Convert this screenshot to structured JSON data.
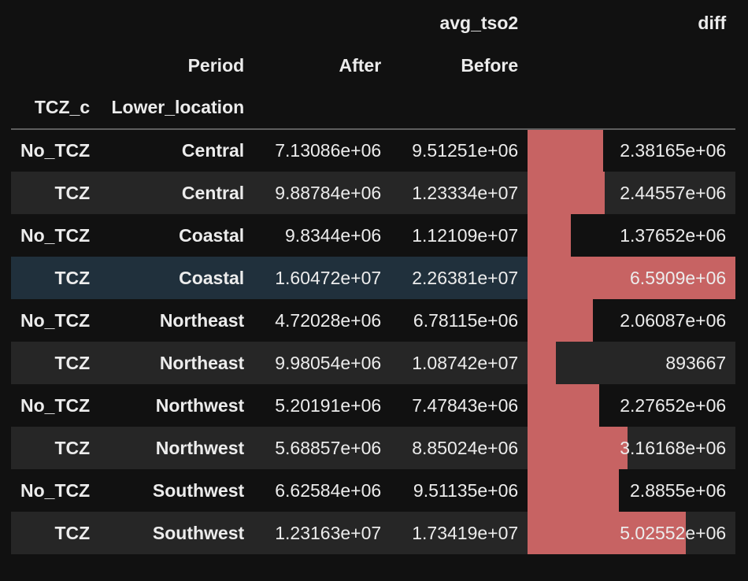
{
  "columns": {
    "group_top": "avg_tso2",
    "diff_top": "diff",
    "period_label": "Period",
    "after_label": "After",
    "before_label": "Before",
    "index_name_1": "TCZ_c",
    "index_name_2": "Lower_location"
  },
  "style": {
    "bar_color": "#c76363",
    "background": "#111111",
    "alt_row": "#262626",
    "hover_row": "#20303c",
    "text": "#ececec"
  },
  "hover_row_index": 3,
  "diff_bar_max": 6590900,
  "rows": [
    {
      "tcz": "No_TCZ",
      "location": "Central",
      "after": "7.13086e+06",
      "before": "9.51251e+06",
      "diff": "2.38165e+06",
      "diff_value": 2381650
    },
    {
      "tcz": "TCZ",
      "location": "Central",
      "after": "9.88784e+06",
      "before": "1.23334e+07",
      "diff": "2.44557e+06",
      "diff_value": 2445570
    },
    {
      "tcz": "No_TCZ",
      "location": "Coastal",
      "after": "9.8344e+06",
      "before": "1.12109e+07",
      "diff": "1.37652e+06",
      "diff_value": 1376520
    },
    {
      "tcz": "TCZ",
      "location": "Coastal",
      "after": "1.60472e+07",
      "before": "2.26381e+07",
      "diff": "6.5909e+06",
      "diff_value": 6590900
    },
    {
      "tcz": "No_TCZ",
      "location": "Northeast",
      "after": "4.72028e+06",
      "before": "6.78115e+06",
      "diff": "2.06087e+06",
      "diff_value": 2060870
    },
    {
      "tcz": "TCZ",
      "location": "Northeast",
      "after": "9.98054e+06",
      "before": "1.08742e+07",
      "diff": "893667",
      "diff_value": 893667
    },
    {
      "tcz": "No_TCZ",
      "location": "Northwest",
      "after": "5.20191e+06",
      "before": "7.47843e+06",
      "diff": "2.27652e+06",
      "diff_value": 2276520
    },
    {
      "tcz": "TCZ",
      "location": "Northwest",
      "after": "5.68857e+06",
      "before": "8.85024e+06",
      "diff": "3.16168e+06",
      "diff_value": 3161680
    },
    {
      "tcz": "No_TCZ",
      "location": "Southwest",
      "after": "6.62584e+06",
      "before": "9.51135e+06",
      "diff": "2.8855e+06",
      "diff_value": 2885500
    },
    {
      "tcz": "TCZ",
      "location": "Southwest",
      "after": "1.23163e+07",
      "before": "1.73419e+07",
      "diff": "5.02552e+06",
      "diff_value": 5025520
    }
  ]
}
